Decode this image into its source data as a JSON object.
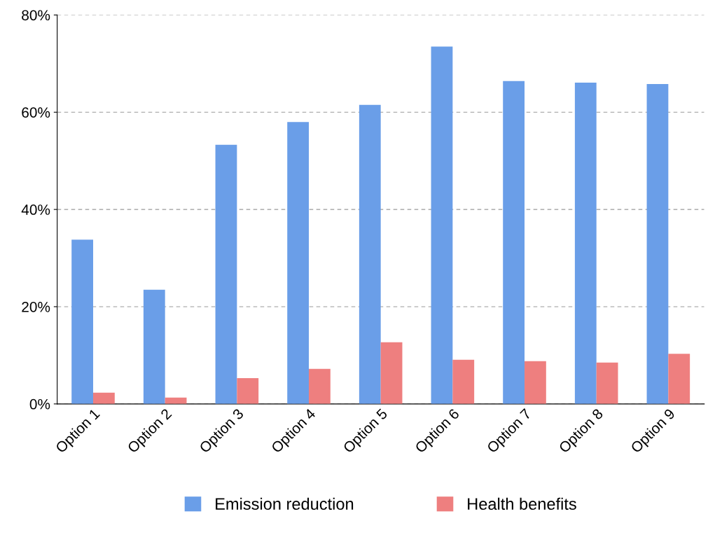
{
  "chart_data": {
    "type": "bar",
    "categories": [
      "Option 1",
      "Option 2",
      "Option 3",
      "Option 4",
      "Option 5",
      "Option 6",
      "Option 7",
      "Option 8",
      "Option 9"
    ],
    "series": [
      {
        "name": "Emission reduction",
        "color": "#6a9ee8",
        "values": [
          33.8,
          23.5,
          53.3,
          58.0,
          61.5,
          73.5,
          66.4,
          66.1,
          65.8
        ]
      },
      {
        "name": "Health benefits",
        "color": "#ee7f7f",
        "values": [
          2.3,
          1.3,
          5.3,
          7.2,
          12.7,
          9.1,
          8.8,
          8.5,
          10.3
        ]
      }
    ],
    "ylim": [
      0,
      80
    ],
    "yticks": [
      {
        "value": 0,
        "label": "0%"
      },
      {
        "value": 20,
        "label": "20%"
      },
      {
        "value": 40,
        "label": "40%"
      },
      {
        "value": 60,
        "label": "60%"
      },
      {
        "value": 80,
        "label": "80%"
      }
    ],
    "grid": "y",
    "legend": "bottom"
  }
}
